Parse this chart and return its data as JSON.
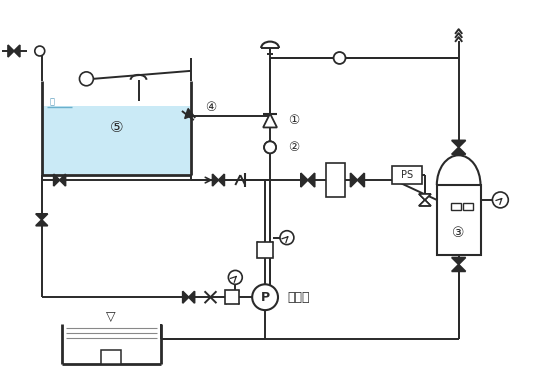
{
  "bg_color": "#ffffff",
  "line_color": "#2a2a2a",
  "tank_fill": "#c5e8f5",
  "label_1": "①",
  "label_2": "②",
  "label_3": "③",
  "label_4": "④",
  "label_5": "⑤",
  "pump_label": "주펌프",
  "ps_label": "PS"
}
